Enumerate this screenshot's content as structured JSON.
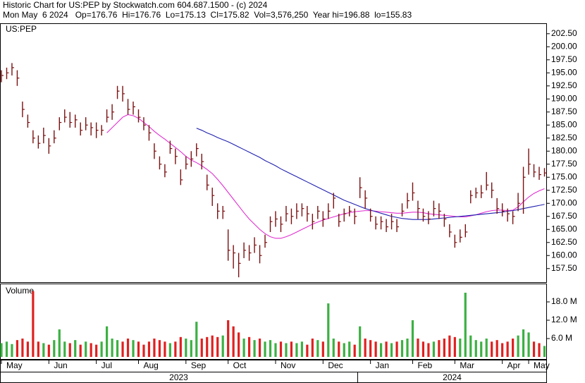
{
  "chart_data": {
    "type": "hlc",
    "title": "Historic Chart for US:PEP by Stockwatch.com 604.687.1500 - (c) 2024",
    "subtitle": "Mon May  6 2024   Op=176.76  Hi=176.76  Lo=175.13  Cl=175.82  Vol=3,576,250  Year hi=196.88  lo=155.83",
    "symbol_label": "US:PEP",
    "volume_label": "Volume",
    "bar_color": "#7a1010",
    "up_color": "#3cb043",
    "down_color": "#e02020",
    "categories": [
      "May",
      null,
      null,
      null,
      null,
      null,
      null,
      null,
      null,
      "Jun",
      null,
      null,
      null,
      null,
      null,
      null,
      null,
      null,
      "Jul",
      null,
      null,
      null,
      null,
      null,
      null,
      null,
      "Aug",
      null,
      null,
      null,
      null,
      null,
      null,
      null,
      null,
      "Sep",
      null,
      null,
      null,
      null,
      null,
      null,
      null,
      "Oct",
      null,
      null,
      null,
      null,
      null,
      null,
      null,
      null,
      "Nov",
      null,
      null,
      null,
      null,
      null,
      null,
      null,
      null,
      "Dec",
      null,
      null,
      null,
      null,
      null,
      null,
      null,
      null,
      "Jan",
      null,
      null,
      null,
      null,
      null,
      null,
      null,
      "Feb",
      null,
      null,
      null,
      null,
      null,
      null,
      null,
      "Mar",
      null,
      null,
      null,
      null,
      null,
      null,
      null,
      null,
      "Apr",
      null,
      null,
      null,
      null,
      "May",
      null,
      null,
      null
    ],
    "years": [
      "2023",
      "2024"
    ],
    "high": [
      195.5,
      196,
      196.88,
      195.5,
      189.5,
      187,
      184,
      183,
      184.5,
      182.5,
      184,
      186.5,
      188,
      187.5,
      187,
      185.5,
      186.5,
      185.5,
      185.5,
      185,
      188,
      189,
      192.5,
      192.5,
      190,
      189.5,
      188,
      186.5,
      185,
      181.5,
      179,
      177.5,
      182,
      180.5,
      176.5,
      179,
      180,
      181.5,
      179.5,
      175.5,
      173,
      170,
      169.5,
      165,
      162,
      160.5,
      162.5,
      162,
      163.5,
      162,
      164,
      167.5,
      168.5,
      167.5,
      169.5,
      169,
      170,
      170,
      169.5,
      168,
      169.5,
      168.5,
      170,
      172,
      168,
      169,
      169.5,
      169,
      175,
      172.5,
      169,
      167.5,
      167.5,
      167,
      168,
      167,
      170,
      172,
      174,
      170.5,
      169,
      168.5,
      170.5,
      170,
      168,
      166,
      164,
      165,
      166,
      172.5,
      173,
      173.5,
      176,
      174,
      171,
      170,
      169,
      168.5,
      172,
      177,
      180.5,
      177.5,
      177,
      176.76
    ],
    "low": [
      193.2,
      193.8,
      194.5,
      192.5,
      186.5,
      184.5,
      181.5,
      180.5,
      181.5,
      179.5,
      181.5,
      184,
      185.5,
      184.5,
      184.5,
      183,
      184,
      183,
      182.5,
      183,
      185.5,
      186,
      190,
      189.5,
      187,
      187,
      185.5,
      184,
      182,
      178.5,
      176.5,
      175,
      179.5,
      177.5,
      173.5,
      176.5,
      177,
      179,
      176.5,
      172.5,
      169.5,
      167,
      167,
      159,
      157.5,
      155.83,
      159.5,
      159,
      160.5,
      158.5,
      161.5,
      164.5,
      165.5,
      164.5,
      166.5,
      166,
      167,
      167.5,
      166.5,
      165,
      167,
      165.5,
      167,
      169,
      165.5,
      166.5,
      167.5,
      166,
      171,
      169,
      166.5,
      165,
      165,
      164.5,
      165,
      164.5,
      167.5,
      169,
      170.5,
      167,
      166.5,
      166,
      167.5,
      167,
      165.5,
      163.5,
      161.5,
      162.5,
      163.5,
      170,
      171,
      171,
      172.5,
      171,
      168,
      167.5,
      166.5,
      166,
      168.5,
      168,
      175.5,
      175,
      174.5,
      175.13
    ],
    "close": [
      194.5,
      195,
      196,
      194,
      188,
      185.5,
      182.5,
      181.5,
      183,
      181,
      182.5,
      185.5,
      186.5,
      185.5,
      186,
      184,
      185,
      184.5,
      184,
      184,
      186.5,
      187.5,
      191.5,
      191,
      188,
      188.5,
      186.5,
      185,
      183.5,
      180,
      177.5,
      176,
      180.5,
      179,
      174.5,
      177.5,
      178.5,
      180.5,
      178,
      173.5,
      171.5,
      168.5,
      168.5,
      161,
      160.5,
      158.5,
      161,
      160.5,
      162,
      160,
      162.5,
      166.5,
      167,
      166,
      168,
      167.5,
      168.5,
      169,
      168,
      166.5,
      168.5,
      167,
      168.5,
      171,
      166.5,
      168,
      168.5,
      167.5,
      173,
      171,
      167.5,
      166,
      166.5,
      165.5,
      166.5,
      165.5,
      168.5,
      170.5,
      172,
      169,
      167.5,
      167,
      169,
      168.5,
      167,
      164.5,
      162.5,
      163.5,
      164.5,
      171.5,
      172,
      172,
      173.5,
      172.5,
      169,
      168.5,
      168,
      167.5,
      170,
      175,
      177.5,
      176,
      175.5,
      175.82
    ],
    "volume": [
      4.5,
      5,
      4.2,
      5.5,
      6,
      5,
      21.5,
      5,
      4.5,
      4,
      5.5,
      9,
      5,
      4.5,
      5.5,
      4,
      5,
      4.5,
      4,
      5,
      10,
      6,
      5.5,
      5,
      6,
      5.5,
      5,
      4,
      5,
      6,
      5.5,
      5,
      4.5,
      5,
      6.5,
      6,
      5.5,
      11.5,
      6,
      6.5,
      7,
      6.5,
      7,
      12,
      10,
      8,
      6,
      6.5,
      5.5,
      6,
      5,
      5.5,
      4.5,
      5,
      4.5,
      5,
      4.5,
      5,
      4,
      6,
      5.5,
      5,
      17.5,
      6,
      5,
      4.5,
      5,
      4,
      10,
      6,
      5.5,
      5,
      4.5,
      5,
      4.5,
      5,
      5.5,
      6,
      12,
      6,
      5,
      4.5,
      5,
      5.5,
      6,
      7,
      6.5,
      6,
      21,
      7,
      5.5,
      5,
      6,
      5,
      5.5,
      4.5,
      5,
      6,
      7,
      9,
      8,
      5,
      4.5,
      3.58
    ],
    "moving_averages": [
      {
        "color": "#e030d0",
        "values": [
          null,
          null,
          null,
          null,
          null,
          null,
          null,
          null,
          null,
          null,
          null,
          null,
          null,
          null,
          null,
          null,
          null,
          null,
          null,
          null,
          183.5,
          184.5,
          185.5,
          186.5,
          187,
          186.8,
          186.3,
          185.5,
          184.7,
          183.8,
          183,
          182.3,
          181.5,
          180.7,
          179.9,
          179,
          178.3,
          177.8,
          177.2,
          176.5,
          175.7,
          174.6,
          173.4,
          172.1,
          170.8,
          169.5,
          168.2,
          167,
          166,
          165,
          164.2,
          163.6,
          163.3,
          163.3,
          163.6,
          164,
          164.5,
          165,
          165.5,
          166,
          166.4,
          166.8,
          167.1,
          167.4,
          167.7,
          168,
          168.2,
          168.4,
          168.5,
          168.6,
          168.6,
          168.5,
          168.4,
          168.3,
          168.2,
          168.1,
          168.1,
          168.2,
          168.3,
          168.3,
          168.2,
          168,
          167.9,
          167.8,
          167.7,
          167.6,
          167.5,
          167.4,
          167.4,
          167.6,
          167.8,
          168.1,
          168.4,
          168.6,
          168.7,
          168.7,
          168.6,
          168.7,
          169.3,
          170.3,
          171.2,
          171.9,
          172.4,
          172.8
        ]
      },
      {
        "color": "#2020b0",
        "values": [
          null,
          null,
          null,
          null,
          null,
          null,
          null,
          null,
          null,
          null,
          null,
          null,
          null,
          null,
          null,
          null,
          null,
          null,
          null,
          null,
          null,
          null,
          null,
          null,
          null,
          null,
          null,
          null,
          null,
          null,
          null,
          null,
          null,
          null,
          null,
          null,
          null,
          184.4,
          184,
          183.5,
          183.1,
          182.6,
          182.2,
          181.8,
          181.3,
          180.8,
          180.3,
          179.8,
          179.3,
          178.8,
          178.2,
          177.7,
          177.2,
          176.6,
          176.1,
          175.6,
          175.1,
          174.6,
          174.1,
          173.6,
          173.1,
          172.6,
          172.1,
          171.6,
          171.1,
          170.6,
          170.2,
          169.8,
          169.4,
          169,
          168.7,
          168.4,
          168.1,
          167.8,
          167.5,
          167.3,
          167.1,
          167,
          166.9,
          166.9,
          166.9,
          166.9,
          167,
          167.1,
          167.2,
          167.3,
          167.4,
          167.5,
          167.6,
          167.7,
          167.8,
          167.9,
          168,
          168.1,
          168.2,
          168.3,
          168.5,
          168.6,
          168.8,
          169,
          169.2,
          169.4,
          169.6,
          169.8
        ]
      }
    ],
    "ylim": [
      154.9,
      204.5
    ],
    "yticks": [
      {
        "value": 157.5,
        "label": "157.50"
      },
      {
        "value": 160,
        "label": "160.00"
      },
      {
        "value": 162.5,
        "label": "162.50"
      },
      {
        "value": 165,
        "label": "165.00"
      },
      {
        "value": 167.5,
        "label": "167.50"
      },
      {
        "value": 170,
        "label": "170.00"
      },
      {
        "value": 172.5,
        "label": "172.50"
      },
      {
        "value": 175,
        "label": "175.00"
      },
      {
        "value": 177.5,
        "label": "177.50"
      },
      {
        "value": 180,
        "label": "180.00"
      },
      {
        "value": 182.5,
        "label": "182.50"
      },
      {
        "value": 185,
        "label": "185.00"
      },
      {
        "value": 187.5,
        "label": "187.50"
      },
      {
        "value": 190,
        "label": "190.00"
      },
      {
        "value": 192.5,
        "label": "192.50"
      },
      {
        "value": 195,
        "label": "195.00"
      },
      {
        "value": 197.5,
        "label": "197.50"
      },
      {
        "value": 200,
        "label": "200.00"
      },
      {
        "value": 202.5,
        "label": "202.50"
      }
    ],
    "volume_ylim": [
      0,
      24
    ],
    "volume_yticks": [
      {
        "value": 6,
        "label": "6.0 M"
      },
      {
        "value": 12,
        "label": "12.0 M"
      },
      {
        "value": 18,
        "label": "18.0 M"
      }
    ]
  }
}
